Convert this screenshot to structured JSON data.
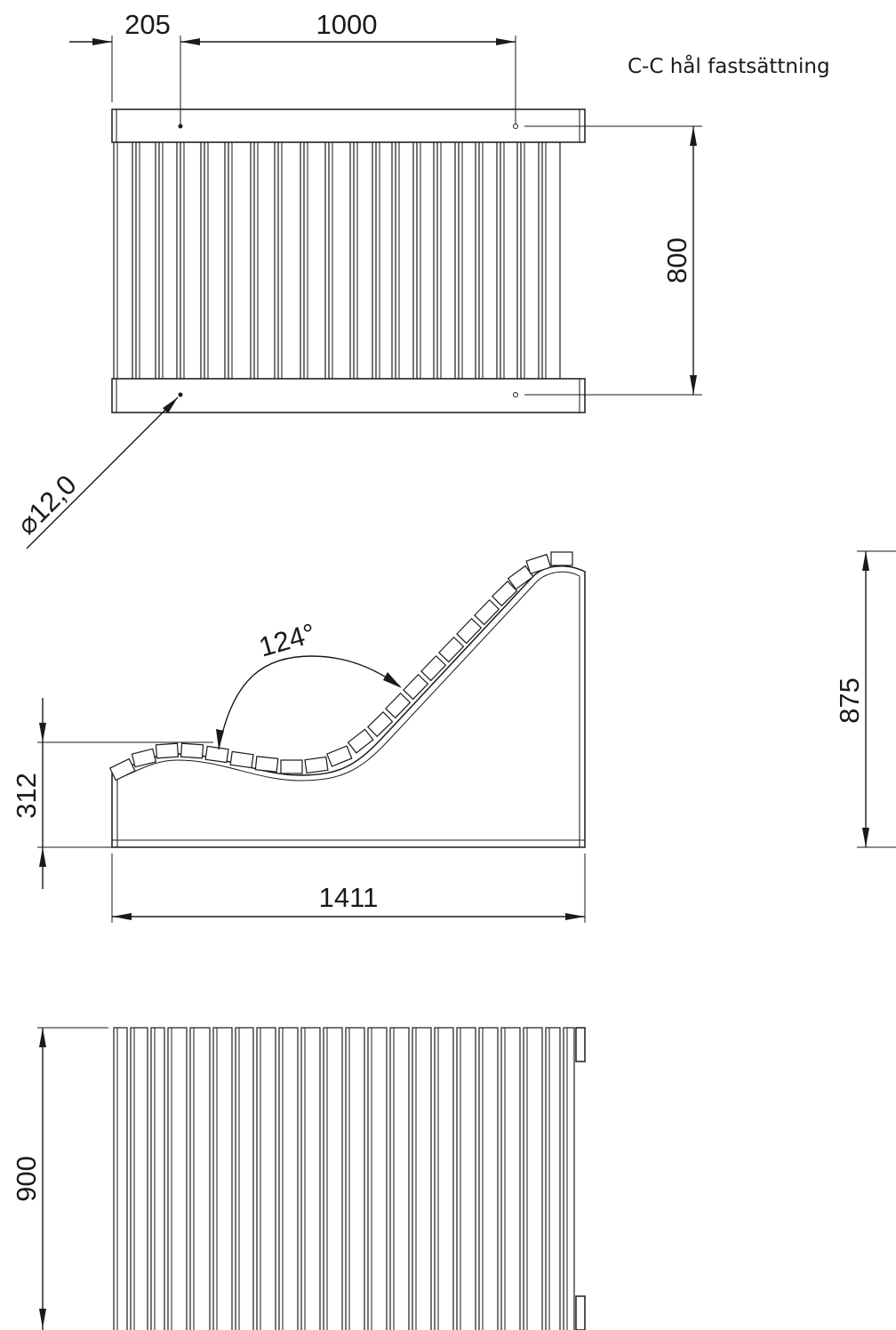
{
  "note": "C-C hål fastsättning",
  "dimensions": {
    "offset": "205",
    "hole_spacing": "1000",
    "width_top": "800",
    "hole_diameter": "12,0",
    "angle": "124°",
    "seat_height": "312",
    "length": "1411",
    "total_height": "875",
    "width_bottom": "900"
  }
}
